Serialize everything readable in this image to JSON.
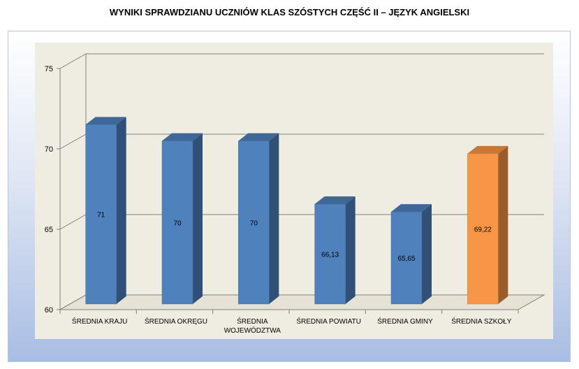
{
  "chart_data": {
    "type": "bar",
    "title": "WYNIKI SPRAWDZIANU UCZNIÓW KLAS SZÓSTYCH CZĘŚĆ II – JĘZYK ANGIELSKI",
    "xlabel": "",
    "ylabel": "",
    "ylim": [
      60,
      75
    ],
    "yticks": [
      "60",
      "65",
      "70",
      "75"
    ],
    "grid": true,
    "categories": [
      [
        "ŚREDNIA KRAJU"
      ],
      [
        "ŚREDNIA OKRĘGU"
      ],
      [
        "ŚREDNIA",
        "WOJEWÓDZTWA"
      ],
      [
        "ŚREDNIA POWIATU"
      ],
      [
        "ŚREDNIA GMINY"
      ],
      [
        "ŚREDNIA  SZKOŁY"
      ]
    ],
    "values": [
      71,
      70,
      70,
      66.13,
      65.65,
      69.22
    ],
    "data_labels": [
      "71",
      "70",
      "70",
      "66,13",
      "65,65",
      "69,22"
    ],
    "colors": {
      "bar_default": "#4f81bd",
      "bar_highlight": "#f79646",
      "plot_background": "#efece1",
      "gridline": "#7f7f7f"
    },
    "highlight_index": 5
  }
}
